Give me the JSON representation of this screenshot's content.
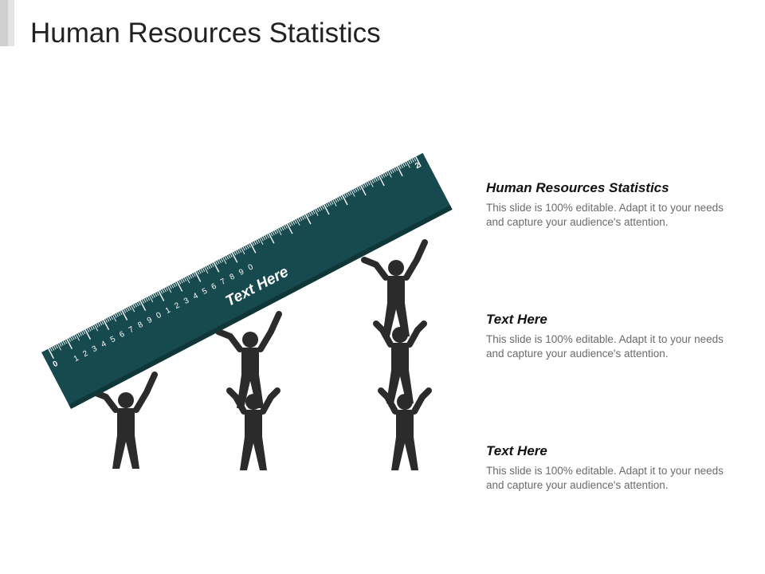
{
  "slide": {
    "title": "Human Resources Statistics"
  },
  "ruler": {
    "label": "Text Here",
    "digits": [
      "1",
      "2",
      "3",
      "4",
      "5",
      "6",
      "7",
      "8",
      "9",
      "0",
      "1",
      "2",
      "3",
      "4",
      "5",
      "6",
      "7",
      "8",
      "9",
      "0"
    ],
    "start_mark": "0",
    "end_mark": "2"
  },
  "text_blocks": [
    {
      "heading": "Human Resources Statistics",
      "body": "This slide is 100% editable. Adapt it to your needs and capture your audience's attention."
    },
    {
      "heading": "Text Here",
      "body": "This slide is 100% editable. Adapt it to your needs and capture your audience's attention."
    },
    {
      "heading": "Text Here",
      "body": "This slide is 100% editable. Adapt it to your needs and capture your audience's attention."
    }
  ],
  "colors": {
    "ruler": "#174a4e",
    "ruler_edge": "#0f3639",
    "figure": "#2b2b2b",
    "title_text": "#222222",
    "body_text": "#6b6b6b"
  },
  "icons": [
    "person-icon"
  ]
}
